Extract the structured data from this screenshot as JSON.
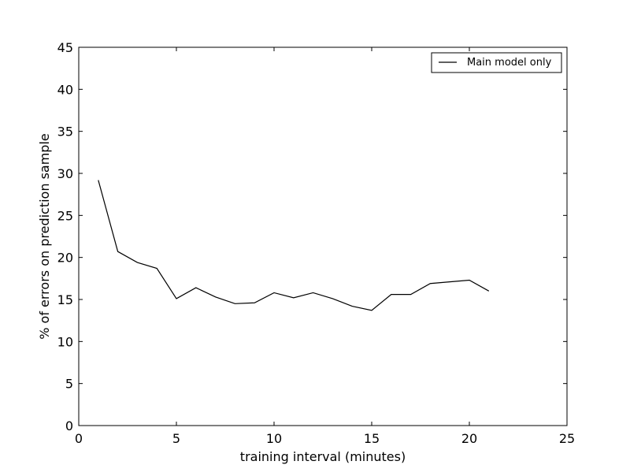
{
  "chart_data": {
    "type": "line",
    "xlabel": "training interval (minutes)",
    "ylabel": "% of errors on prediction sample",
    "xlim": [
      0,
      25
    ],
    "ylim": [
      0,
      45
    ],
    "xticks": [
      "0",
      "5",
      "10",
      "15",
      "20",
      "25"
    ],
    "yticks": [
      "0",
      "5",
      "10",
      "15",
      "20",
      "25",
      "30",
      "35",
      "40",
      "45"
    ],
    "grid": false,
    "legend_position": "top-right",
    "series": [
      {
        "name": "Main model only",
        "color": "#000000",
        "x": [
          1,
          2,
          3,
          4,
          5,
          6,
          7,
          8,
          9,
          10,
          11,
          12,
          13,
          14,
          15,
          16,
          17,
          18,
          19,
          20,
          21
        ],
        "y": [
          29.2,
          20.7,
          19.4,
          18.7,
          15.1,
          16.4,
          15.3,
          14.5,
          14.6,
          15.8,
          15.2,
          15.8,
          15.1,
          14.2,
          13.7,
          15.6,
          15.6,
          16.9,
          17.1,
          17.3,
          16.0
        ]
      }
    ]
  }
}
